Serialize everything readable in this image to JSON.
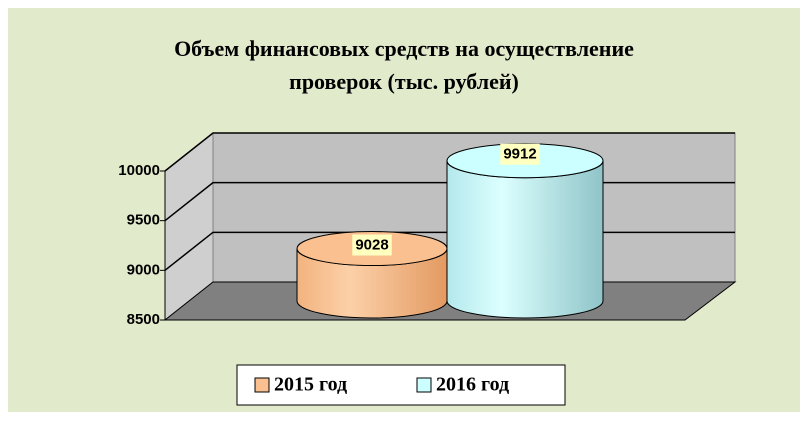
{
  "chart_data": {
    "type": "cylinder",
    "title": [
      "Объем финансовых средств на осуществление",
      "проверок (тыс. рублей)"
    ],
    "series": [
      {
        "name": "2015 год",
        "color": "#fac090",
        "values": [
          9028
        ]
      },
      {
        "name": "2016 год",
        "color": "#ccffff",
        "values": [
          9912
        ]
      }
    ],
    "ylim": [
      8500,
      10000
    ],
    "yticks": [
      8500,
      9000,
      9500,
      10000
    ],
    "grid": true,
    "legend": "bottom"
  }
}
